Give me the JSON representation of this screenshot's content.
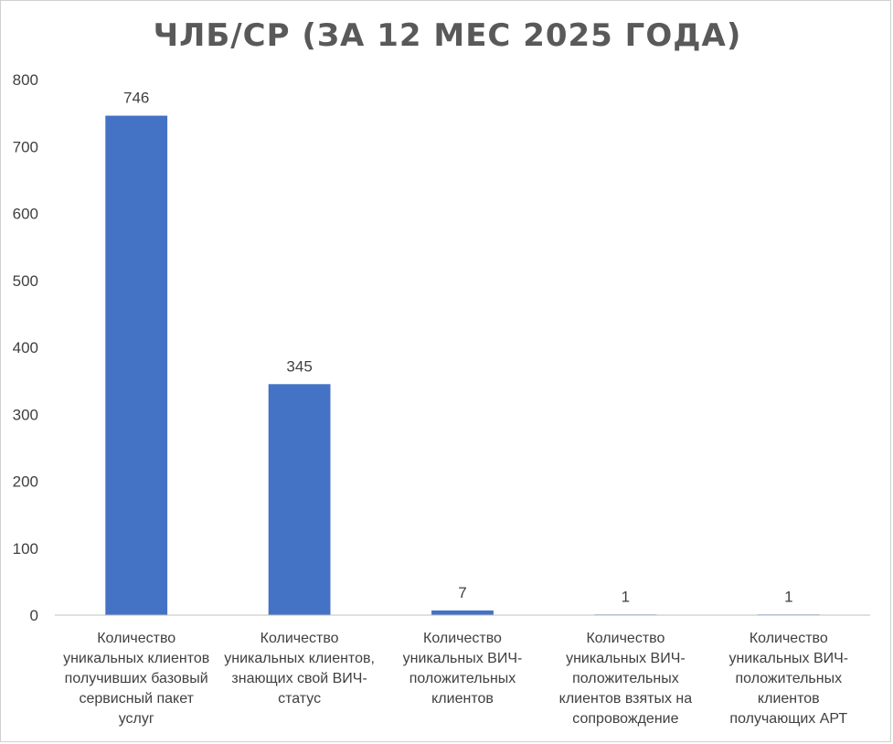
{
  "chart_data": {
    "type": "bar",
    "title": "ЧЛБ/СР (ЗА 12 МЕС 2025 ГОДА)",
    "categories": [
      [
        "Количество",
        "уникальных клиентов",
        "получивших базовый",
        "сервисный пакет",
        "услуг"
      ],
      [
        "Количество",
        "уникальных клиентов,",
        "знающих свой ВИЧ-",
        "статус"
      ],
      [
        "Количество",
        "уникальных ВИЧ-",
        "положительных",
        "клиентов"
      ],
      [
        "Количество",
        "уникальных ВИЧ-",
        "положительных",
        "клиентов взятых на",
        "сопровождение"
      ],
      [
        "Количество",
        "уникальных ВИЧ-",
        "положительных",
        "клиентов",
        "получающих АРТ"
      ]
    ],
    "values": [
      746,
      345,
      7,
      1,
      1
    ],
    "data_labels": [
      "746",
      "345",
      "7",
      "1",
      "1"
    ],
    "yticks": [
      0,
      100,
      200,
      300,
      400,
      500,
      600,
      700,
      800
    ],
    "ylim": [
      0,
      800
    ],
    "grid": false,
    "bar_color": "#4472C4"
  }
}
